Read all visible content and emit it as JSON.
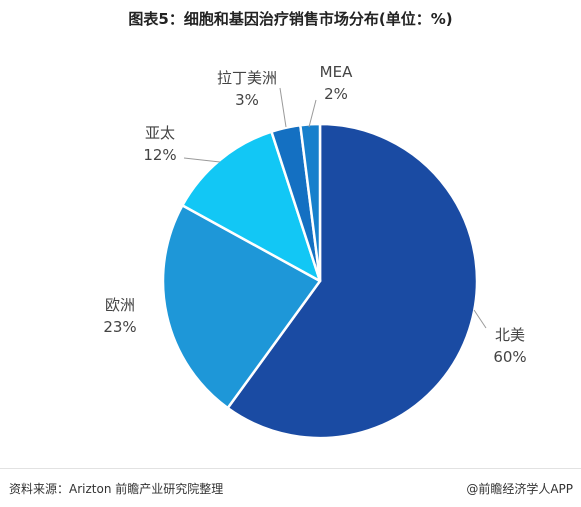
{
  "title": "图表5：细胞和基因治疗销售市场分布(单位：%)",
  "chart_data": {
    "type": "pie",
    "title": "图表5：细胞和基因治疗销售市场分布(单位：%)",
    "slices": [
      {
        "label": "北美",
        "value": 60,
        "display": "60%",
        "color": "#1a4ba3"
      },
      {
        "label": "欧洲",
        "value": 23,
        "display": "23%",
        "color": "#1e97d8"
      },
      {
        "label": "亚太",
        "value": 12,
        "display": "12%",
        "color": "#12c7f5"
      },
      {
        "label": "拉丁美洲",
        "value": 3,
        "display": "3%",
        "color": "#1470c2"
      },
      {
        "label": "MEA",
        "value": 2,
        "display": "2%",
        "color": "#1780cc"
      }
    ],
    "start": "12 o'clock",
    "direction": "clockwise"
  },
  "footer": {
    "source": "资料来源：Arizton 前瞻产业研究院整理",
    "brand": "@前瞻经济学人APP"
  }
}
